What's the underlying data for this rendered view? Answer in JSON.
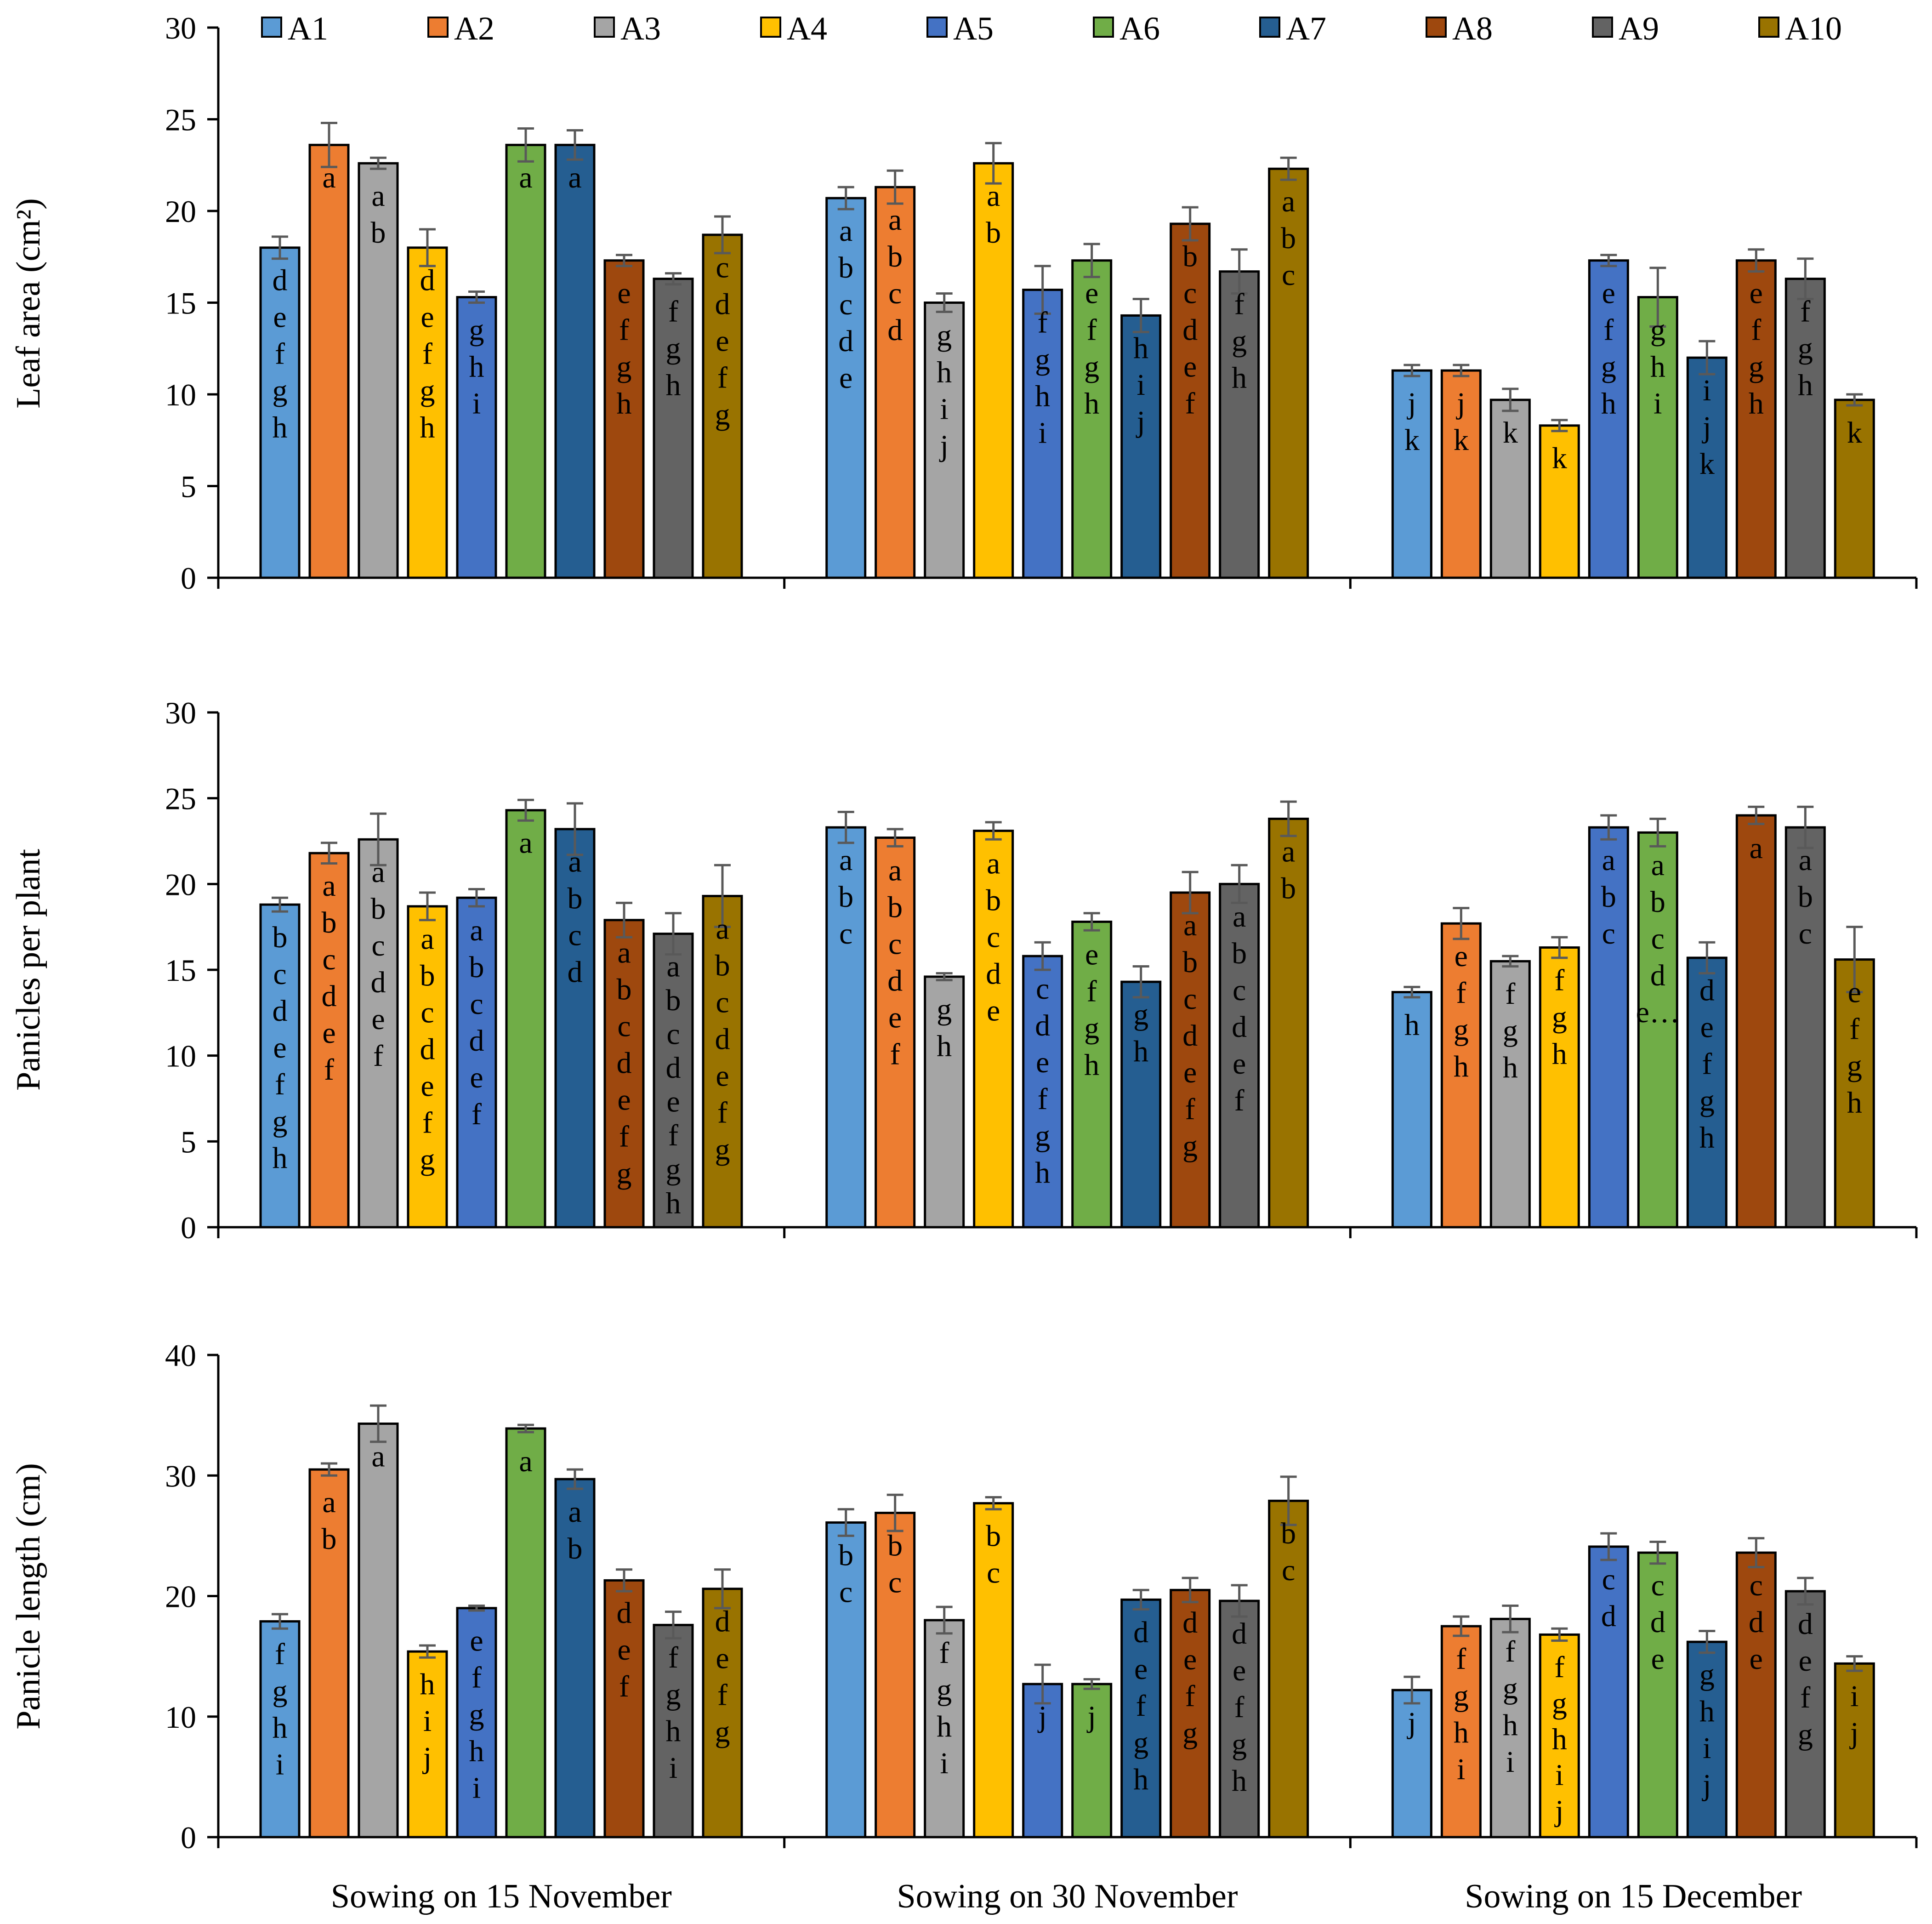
{
  "legend": [
    "A1",
    "A2",
    "A3",
    "A4",
    "A5",
    "A6",
    "A7",
    "A8",
    "A9",
    "A10"
  ],
  "colors": [
    "#5b9bd5",
    "#ed7d31",
    "#a5a5a5",
    "#ffc000",
    "#4472c4",
    "#70ad47",
    "#255e91",
    "#9e480e",
    "#636363",
    "#997300"
  ],
  "chart_data": [
    {
      "type": "bar",
      "ylabel": "Leaf area (cm²)",
      "ylim": [
        0,
        30
      ],
      "yticks": [
        0,
        5,
        10,
        15,
        20,
        25,
        30
      ],
      "categories": [
        "Sowing on 15 November",
        "Sowing on 30 November",
        "Sowing on 15 December"
      ],
      "series": [
        {
          "name": "A1",
          "values": [
            18.0,
            20.7,
            11.3
          ],
          "errors": [
            0.6,
            0.6,
            0.3
          ],
          "letters": [
            "defgh",
            "abcde",
            "jk"
          ]
        },
        {
          "name": "A2",
          "values": [
            23.6,
            21.3,
            11.3
          ],
          "errors": [
            1.2,
            0.9,
            0.3
          ],
          "letters": [
            "a",
            "abcd",
            "jk"
          ]
        },
        {
          "name": "A3",
          "values": [
            22.6,
            15.0,
            9.7
          ],
          "errors": [
            0.3,
            0.5,
            0.6
          ],
          "letters": [
            "ab",
            "ghij",
            "k"
          ]
        },
        {
          "name": "A4",
          "values": [
            18.0,
            22.6,
            8.3
          ],
          "errors": [
            1.0,
            1.1,
            0.3
          ],
          "letters": [
            "defgh",
            "ab",
            "k"
          ]
        },
        {
          "name": "A5",
          "values": [
            15.3,
            15.7,
            17.3
          ],
          "errors": [
            0.3,
            1.3,
            0.3
          ],
          "letters": [
            "ghi",
            "fghi",
            "efgh"
          ]
        },
        {
          "name": "A6",
          "values": [
            23.6,
            17.3,
            15.3
          ],
          "errors": [
            0.9,
            0.9,
            1.6
          ],
          "letters": [
            "a",
            "efgh",
            "ghi"
          ]
        },
        {
          "name": "A7",
          "values": [
            23.6,
            14.3,
            12.0
          ],
          "errors": [
            0.8,
            0.9,
            0.9
          ],
          "letters": [
            "a",
            "hij",
            "ijk"
          ]
        },
        {
          "name": "A8",
          "values": [
            17.3,
            19.3,
            17.3
          ],
          "errors": [
            0.3,
            0.9,
            0.6
          ],
          "letters": [
            "efgh",
            "bcdef",
            "efgh"
          ]
        },
        {
          "name": "A9",
          "values": [
            16.3,
            16.7,
            16.3
          ],
          "errors": [
            0.3,
            1.2,
            1.1
          ],
          "letters": [
            "fgh",
            "fgh",
            "fgh"
          ]
        },
        {
          "name": "A10",
          "values": [
            18.7,
            22.3,
            9.7
          ],
          "errors": [
            1.0,
            0.6,
            0.3
          ],
          "letters": [
            "cdefg",
            "abc",
            "k"
          ]
        }
      ]
    },
    {
      "type": "bar",
      "ylabel": "Panicles per plant",
      "ylim": [
        0,
        30
      ],
      "yticks": [
        0,
        5,
        10,
        15,
        20,
        25,
        30
      ],
      "categories": [
        "Sowing on 15 November",
        "Sowing on 30 November",
        "Sowing on 15 December"
      ],
      "series": [
        {
          "name": "A1",
          "values": [
            18.8,
            23.3,
            13.7
          ],
          "errors": [
            0.4,
            0.9,
            0.3
          ],
          "letters": [
            "bcdefgh",
            "abc",
            "h"
          ]
        },
        {
          "name": "A2",
          "values": [
            21.8,
            22.7,
            17.7
          ],
          "errors": [
            0.6,
            0.5,
            0.9
          ],
          "letters": [
            "abcdef",
            "abcdef",
            "efgh"
          ]
        },
        {
          "name": "A3",
          "values": [
            22.6,
            14.6,
            15.5
          ],
          "errors": [
            1.5,
            0.2,
            0.3
          ],
          "letters": [
            "abcdef",
            "gh",
            "fgh"
          ]
        },
        {
          "name": "A4",
          "values": [
            18.7,
            23.1,
            16.3
          ],
          "errors": [
            0.8,
            0.5,
            0.6
          ],
          "letters": [
            "abcdefg",
            "abcde",
            "fgh"
          ]
        },
        {
          "name": "A5",
          "values": [
            19.2,
            15.8,
            23.3
          ],
          "errors": [
            0.5,
            0.8,
            0.7
          ],
          "letters": [
            "abcdef",
            "cdefgh",
            "abc"
          ]
        },
        {
          "name": "A6",
          "values": [
            24.3,
            17.8,
            23.0
          ],
          "errors": [
            0.6,
            0.5,
            0.8
          ],
          "letters": [
            "a",
            "efgh",
            "abcde…"
          ]
        },
        {
          "name": "A7",
          "values": [
            23.2,
            14.3,
            15.7
          ],
          "errors": [
            1.5,
            0.9,
            0.9
          ],
          "letters": [
            "abcd",
            "gh",
            "defgh"
          ]
        },
        {
          "name": "A8",
          "values": [
            17.9,
            19.5,
            24.0
          ],
          "errors": [
            1.0,
            1.2,
            0.5
          ],
          "letters": [
            "abcdefg",
            "abcdefg",
            "a"
          ]
        },
        {
          "name": "A9",
          "values": [
            17.1,
            20.0,
            23.3
          ],
          "errors": [
            1.2,
            1.1,
            1.2
          ],
          "letters": [
            "abcdefgh",
            "abcdef",
            "abc"
          ]
        },
        {
          "name": "A10",
          "values": [
            19.3,
            23.8,
            15.6
          ],
          "errors": [
            1.8,
            1.0,
            1.9
          ],
          "letters": [
            "abcdefg",
            "ab",
            "efgh"
          ]
        }
      ]
    },
    {
      "type": "bar",
      "ylabel": "Panicle length (cm)",
      "ylim": [
        0,
        40
      ],
      "yticks": [
        0,
        10,
        20,
        30,
        40
      ],
      "categories": [
        "Sowing on 15 November",
        "Sowing on 30 November",
        "Sowing on 15 December"
      ],
      "series": [
        {
          "name": "A1",
          "values": [
            17.9,
            26.1,
            12.2
          ],
          "errors": [
            0.6,
            1.1,
            1.1
          ],
          "letters": [
            "fghi",
            "bc",
            "j"
          ]
        },
        {
          "name": "A2",
          "values": [
            30.5,
            26.9,
            17.5
          ],
          "errors": [
            0.5,
            1.5,
            0.8
          ],
          "letters": [
            "ab",
            "bc",
            "fghi"
          ]
        },
        {
          "name": "A3",
          "values": [
            34.3,
            18.0,
            18.1
          ],
          "errors": [
            1.5,
            1.1,
            1.1
          ],
          "letters": [
            "a",
            "fghi",
            "fghi"
          ]
        },
        {
          "name": "A4",
          "values": [
            15.4,
            27.7,
            16.8
          ],
          "errors": [
            0.5,
            0.5,
            0.5
          ],
          "letters": [
            "hij",
            "bc",
            "fghij"
          ]
        },
        {
          "name": "A5",
          "values": [
            19.0,
            12.7,
            24.1
          ],
          "errors": [
            0.2,
            1.6,
            1.1
          ],
          "letters": [
            "efghi",
            "j",
            "cd"
          ]
        },
        {
          "name": "A6",
          "values": [
            33.9,
            12.7,
            23.6
          ],
          "errors": [
            0.3,
            0.4,
            0.9
          ],
          "letters": [
            "a",
            "j",
            "cde"
          ]
        },
        {
          "name": "A7",
          "values": [
            29.7,
            19.7,
            16.2
          ],
          "errors": [
            0.8,
            0.8,
            0.9
          ],
          "letters": [
            "ab",
            "defgh",
            "ghij"
          ]
        },
        {
          "name": "A8",
          "values": [
            21.3,
            20.5,
            23.6
          ],
          "errors": [
            0.9,
            1.0,
            1.2
          ],
          "letters": [
            "def",
            "defg",
            "cde"
          ]
        },
        {
          "name": "A9",
          "values": [
            17.6,
            19.6,
            20.4
          ],
          "errors": [
            1.1,
            1.3,
            1.1
          ],
          "letters": [
            "fghi",
            "defgh",
            "defg"
          ]
        },
        {
          "name": "A10",
          "values": [
            20.6,
            27.9,
            14.4
          ],
          "errors": [
            1.6,
            2.0,
            0.6
          ],
          "letters": [
            "defg",
            "bc",
            "ij"
          ]
        }
      ]
    }
  ]
}
